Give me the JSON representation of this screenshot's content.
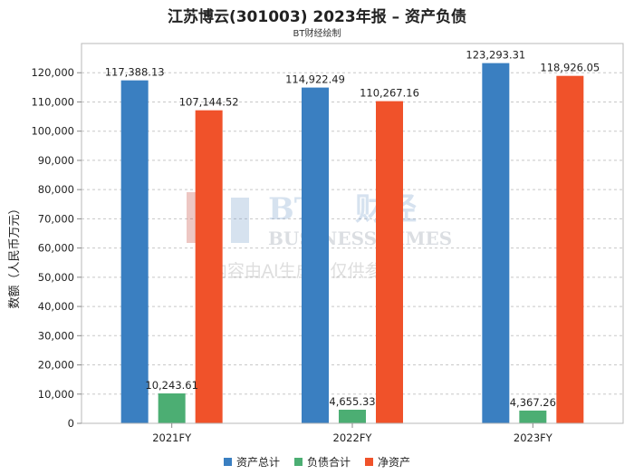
{
  "header": {
    "title": "江苏博云(301003) 2023年报 – 资产负债",
    "subtitle": "BT财经绘制"
  },
  "watermark": {
    "brand_en": "BUSINESS TIMES",
    "brand_bt": "BT",
    "brand_cn": "财经",
    "notice": "内容由AI生成，仅供参考"
  },
  "chart_data": {
    "type": "bar",
    "categories": [
      "2021FY",
      "2022FY",
      "2023FY"
    ],
    "ylabel": "数额（人民币万元）",
    "ylim": [
      0,
      130000
    ],
    "yticks": [
      0,
      10000,
      20000,
      30000,
      40000,
      50000,
      60000,
      70000,
      80000,
      90000,
      100000,
      110000,
      120000
    ],
    "grid": true,
    "legend_position": "bottom",
    "series": [
      {
        "name": "资产总计",
        "color": "#3a7fc1",
        "values": [
          117388.13,
          114922.49,
          123293.31
        ]
      },
      {
        "name": "负债合计",
        "color": "#4cae73",
        "values": [
          10243.61,
          4655.33,
          4367.26
        ]
      },
      {
        "name": "净资产",
        "color": "#f0522a",
        "values": [
          107144.52,
          110267.16,
          118926.05
        ]
      }
    ]
  }
}
